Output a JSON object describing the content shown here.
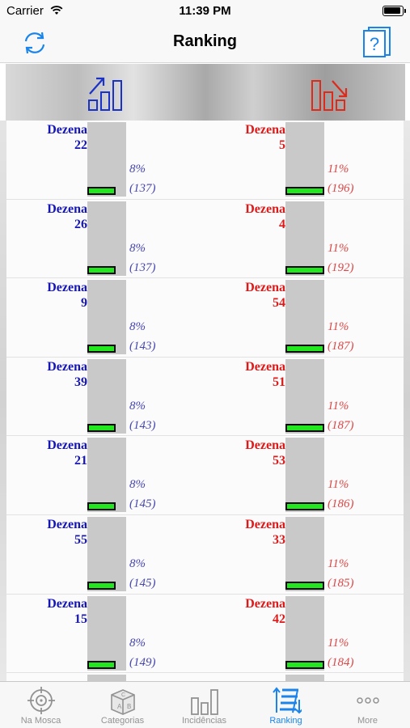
{
  "status_bar": {
    "carrier": "Carrier",
    "time": "11:39 PM"
  },
  "nav": {
    "title": "Ranking",
    "refresh_icon": "refresh-icon",
    "help_icon": "help-icon"
  },
  "header": {
    "left_icon": "trending-up-chart-icon",
    "right_icon": "trending-down-chart-icon"
  },
  "colors": {
    "left_accent": "#1515b8",
    "right_accent": "#dd1a1a",
    "bar_fill": "#22e61e",
    "tab_active": "#1a84ea"
  },
  "rows": [
    {
      "left": {
        "label": "Dezena",
        "number": "22",
        "percent": "8%",
        "count": "(137)",
        "level": 0.08
      },
      "right": {
        "label": "Dezena",
        "number": "5",
        "percent": "11%",
        "count": "(196)",
        "level": 0.11
      }
    },
    {
      "left": {
        "label": "Dezena",
        "number": "26",
        "percent": "8%",
        "count": "(137)",
        "level": 0.08
      },
      "right": {
        "label": "Dezena",
        "number": "4",
        "percent": "11%",
        "count": "(192)",
        "level": 0.11
      }
    },
    {
      "left": {
        "label": "Dezena",
        "number": "9",
        "percent": "8%",
        "count": "(143)",
        "level": 0.08
      },
      "right": {
        "label": "Dezena",
        "number": "54",
        "percent": "11%",
        "count": "(187)",
        "level": 0.11
      }
    },
    {
      "left": {
        "label": "Dezena",
        "number": "39",
        "percent": "8%",
        "count": "(143)",
        "level": 0.08
      },
      "right": {
        "label": "Dezena",
        "number": "51",
        "percent": "11%",
        "count": "(187)",
        "level": 0.11
      }
    },
    {
      "left": {
        "label": "Dezena",
        "number": "21",
        "percent": "8%",
        "count": "(145)",
        "level": 0.08
      },
      "right": {
        "label": "Dezena",
        "number": "53",
        "percent": "11%",
        "count": "(186)",
        "level": 0.11
      }
    },
    {
      "left": {
        "label": "Dezena",
        "number": "55",
        "percent": "8%",
        "count": "(145)",
        "level": 0.08
      },
      "right": {
        "label": "Dezena",
        "number": "33",
        "percent": "11%",
        "count": "(185)",
        "level": 0.11
      }
    },
    {
      "left": {
        "label": "Dezena",
        "number": "15",
        "percent": "8%",
        "count": "(149)",
        "level": 0.08
      },
      "right": {
        "label": "Dezena",
        "number": "42",
        "percent": "11%",
        "count": "(184)",
        "level": 0.11
      }
    }
  ],
  "tabs": [
    {
      "label": "Na Mosca",
      "icon": "target-icon",
      "active": false
    },
    {
      "label": "Categorias",
      "icon": "blocks-icon",
      "active": false
    },
    {
      "label": "Incidências",
      "icon": "bar-chart-icon",
      "active": false
    },
    {
      "label": "Ranking",
      "icon": "ranking-icon",
      "active": true
    },
    {
      "label": "More",
      "icon": "more-icon",
      "active": false
    }
  ]
}
